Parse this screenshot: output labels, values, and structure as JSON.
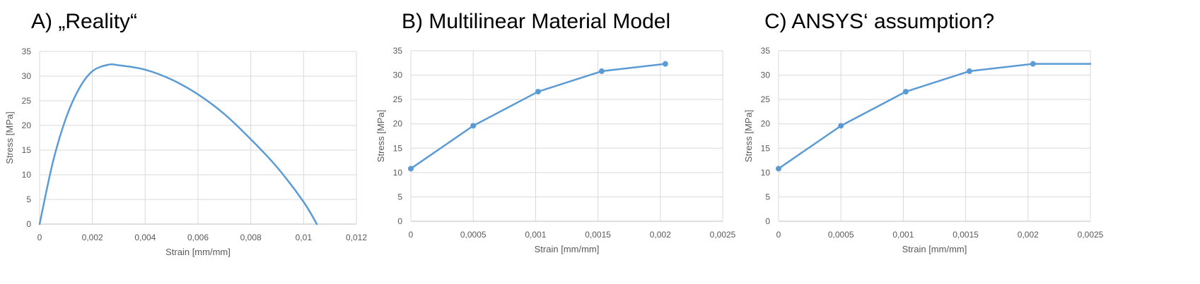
{
  "colors": {
    "series": "#5b9bd5",
    "grid": "#d9d9d9",
    "text": "#595959"
  },
  "chart_data": [
    {
      "type": "line",
      "title": "A) „Reality“",
      "xlabel": "Strain [mm/mm]",
      "ylabel": "Stress [MPa]",
      "xlim": [
        0,
        0.012
      ],
      "ylim": [
        0,
        35
      ],
      "xticks": [
        0,
        0.002,
        0.004,
        0.006,
        0.008,
        0.01,
        0.012
      ],
      "xtick_labels": [
        "0",
        "0,002",
        "0,004",
        "0,006",
        "0,008",
        "0,01",
        "0,012"
      ],
      "yticks": [
        0,
        5,
        10,
        15,
        20,
        25,
        30,
        35
      ],
      "ytick_labels": [
        "0",
        "5",
        "10",
        "15",
        "20",
        "25",
        "30",
        "35"
      ],
      "grid": true,
      "markers": false,
      "smooth": true,
      "x": [
        0,
        0.0005,
        0.001,
        0.0015,
        0.002,
        0.0026,
        0.003,
        0.004,
        0.005,
        0.006,
        0.007,
        0.008,
        0.009,
        0.01,
        0.0105
      ],
      "y": [
        0,
        12.5,
        21.5,
        27.5,
        31,
        32.3,
        32.2,
        31.3,
        29.3,
        26.3,
        22.3,
        17.2,
        11.5,
        4.5,
        0
      ]
    },
    {
      "type": "line",
      "title": "B) Multilinear Material Model",
      "xlabel": "Strain [mm/mm]",
      "ylabel": "Stress [MPa]",
      "xlim": [
        0,
        0.0025
      ],
      "ylim": [
        0,
        35
      ],
      "xticks": [
        0,
        0.0005,
        0.001,
        0.0015,
        0.002,
        0.0025
      ],
      "xtick_labels": [
        "0",
        "0,0005",
        "0,001",
        "0,0015",
        "0,002",
        "0,0025"
      ],
      "yticks": [
        0,
        5,
        10,
        15,
        20,
        25,
        30,
        35
      ],
      "ytick_labels": [
        "0",
        "5",
        "10",
        "15",
        "20",
        "25",
        "30",
        "35"
      ],
      "grid": true,
      "markers": true,
      "smooth": false,
      "x": [
        0,
        0.0005,
        0.00102,
        0.00153,
        0.00204
      ],
      "y": [
        10.8,
        19.6,
        26.6,
        30.8,
        32.3
      ]
    },
    {
      "type": "line",
      "title": "C) ANSYS‘ assumption?",
      "xlabel": "Strain [mm/mm]",
      "ylabel": "Stress [MPa]",
      "xlim": [
        0,
        0.0025
      ],
      "ylim": [
        0,
        35
      ],
      "xticks": [
        0,
        0.0005,
        0.001,
        0.0015,
        0.002,
        0.0025
      ],
      "xtick_labels": [
        "0",
        "0,0005",
        "0,001",
        "0,0015",
        "0,002",
        "0,0025"
      ],
      "yticks": [
        0,
        5,
        10,
        15,
        20,
        25,
        30,
        35
      ],
      "ytick_labels": [
        "0",
        "5",
        "10",
        "15",
        "20",
        "25",
        "30",
        "35"
      ],
      "grid": true,
      "markers": true,
      "smooth": false,
      "x": [
        0,
        0.0005,
        0.00102,
        0.00153,
        0.00204,
        0.0025
      ],
      "y": [
        10.8,
        19.6,
        26.6,
        30.8,
        32.3,
        32.3
      ],
      "marker_count": 5
    }
  ]
}
